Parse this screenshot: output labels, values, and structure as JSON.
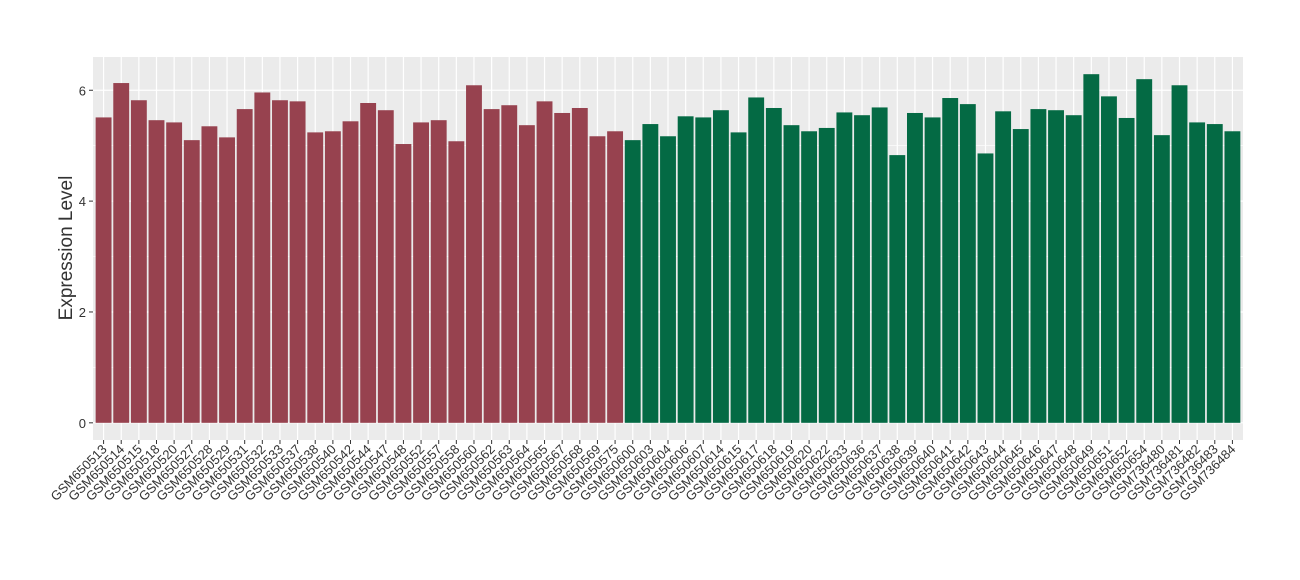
{
  "chart_data": {
    "type": "bar",
    "y_label": "Expression Level",
    "categories": [
      "GSM650513",
      "GSM650514",
      "GSM650515",
      "GSM650518",
      "GSM650520",
      "GSM650527",
      "GSM650528",
      "GSM650529",
      "GSM650531",
      "GSM650532",
      "GSM650533",
      "GSM650537",
      "GSM650538",
      "GSM650540",
      "GSM650542",
      "GSM650544",
      "GSM650547",
      "GSM650548",
      "GSM650552",
      "GSM650557",
      "GSM650558",
      "GSM650560",
      "GSM650562",
      "GSM650563",
      "GSM650564",
      "GSM650565",
      "GSM650567",
      "GSM650568",
      "GSM650569",
      "GSM650575",
      "GSM650600",
      "GSM650603",
      "GSM650604",
      "GSM650606",
      "GSM650607",
      "GSM650614",
      "GSM650615",
      "GSM650617",
      "GSM650618",
      "GSM650619",
      "GSM650620",
      "GSM650622",
      "GSM650633",
      "GSM650636",
      "GSM650637",
      "GSM650638",
      "GSM650639",
      "GSM650640",
      "GSM650641",
      "GSM650642",
      "GSM650643",
      "GSM650644",
      "GSM650645",
      "GSM650646",
      "GSM650647",
      "GSM650648",
      "GSM650649",
      "GSM650651",
      "GSM650652",
      "GSM650654",
      "GSM736480",
      "GSM736481",
      "GSM736482",
      "GSM736483",
      "GSM736484"
    ],
    "values": [
      5.51,
      6.13,
      5.82,
      5.46,
      5.42,
      5.1,
      5.35,
      5.15,
      5.66,
      5.96,
      5.82,
      5.8,
      5.24,
      5.26,
      5.44,
      5.77,
      5.64,
      5.03,
      5.42,
      5.46,
      5.08,
      6.09,
      5.66,
      5.73,
      5.37,
      5.8,
      5.59,
      5.68,
      5.17,
      5.26,
      5.1,
      5.39,
      5.17,
      5.53,
      5.51,
      5.64,
      5.24,
      5.87,
      5.68,
      5.37,
      5.26,
      5.32,
      5.6,
      5.55,
      5.69,
      4.83,
      5.59,
      5.51,
      5.86,
      5.75,
      4.86,
      5.62,
      5.3,
      5.66,
      5.64,
      5.55,
      6.29,
      5.89,
      5.5,
      6.2,
      5.19,
      6.09,
      5.42,
      5.39,
      5.26
    ],
    "colors": [
      "#97424f",
      "#97424f",
      "#97424f",
      "#97424f",
      "#97424f",
      "#97424f",
      "#97424f",
      "#97424f",
      "#97424f",
      "#97424f",
      "#97424f",
      "#97424f",
      "#97424f",
      "#97424f",
      "#97424f",
      "#97424f",
      "#97424f",
      "#97424f",
      "#97424f",
      "#97424f",
      "#97424f",
      "#97424f",
      "#97424f",
      "#97424f",
      "#97424f",
      "#97424f",
      "#97424f",
      "#97424f",
      "#97424f",
      "#97424f",
      "#046a44",
      "#046a44",
      "#046a44",
      "#046a44",
      "#046a44",
      "#046a44",
      "#046a44",
      "#046a44",
      "#046a44",
      "#046a44",
      "#046a44",
      "#046a44",
      "#046a44",
      "#046a44",
      "#046a44",
      "#046a44",
      "#046a44",
      "#046a44",
      "#046a44",
      "#046a44",
      "#046a44",
      "#046a44",
      "#046a44",
      "#046a44",
      "#046a44",
      "#046a44",
      "#046a44",
      "#046a44",
      "#046a44",
      "#046a44",
      "#046a44",
      "#046a44",
      "#046a44",
      "#046a44",
      "#046a44"
    ],
    "ylim": [
      -0.31,
      6.6
    ],
    "yticks": [
      0,
      2,
      4,
      6
    ],
    "grid": true
  }
}
